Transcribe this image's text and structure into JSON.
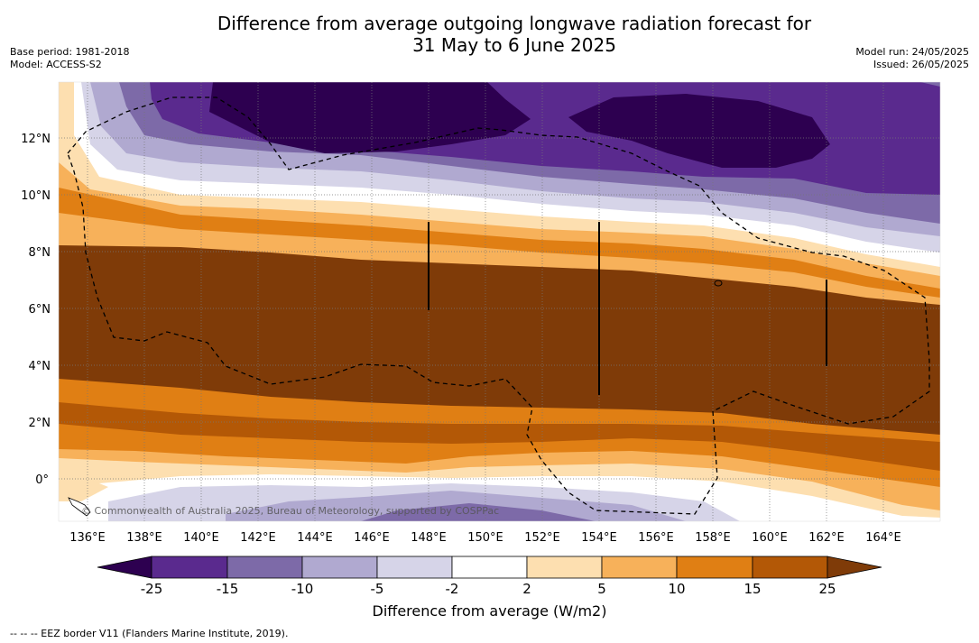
{
  "title_line1": "Difference from average outgoing longwave radiation forecast for",
  "title_line2": "31 May to 6 June 2025",
  "base_period": "Base period: 1981-2018",
  "model": "Model: ACCESS-S2",
  "model_run": "Model run: 24/05/2025",
  "issued": "Issued: 26/05/2025",
  "copyright": "© Commonwealth of Australia 2025, Bureau of Meteorology, supported by COSPPac",
  "lon_labels": [
    "136°E",
    "138°E",
    "140°E",
    "142°E",
    "144°E",
    "146°E",
    "148°E",
    "150°E",
    "152°E",
    "154°E",
    "156°E",
    "158°E",
    "160°E",
    "162°E",
    "164°E"
  ],
  "lat_labels": [
    "12°N",
    "10°N",
    "8°N",
    "6°N",
    "4°N",
    "2°N",
    "0°"
  ],
  "colorbar": {
    "ticks": [
      "-25",
      "-15",
      "-10",
      "-5",
      "-2",
      "2",
      "5",
      "10",
      "15",
      "25"
    ],
    "colors": [
      "#2d0050",
      "#5a2a8e",
      "#7d6aa8",
      "#b0a9d0",
      "#d6d4e8",
      "#ffffff",
      "#fddfb0",
      "#f7b15a",
      "#e07f14",
      "#b35806",
      "#7f3b08"
    ],
    "label": "Difference from average (W/m2)"
  },
  "footnote": "--  --  -- EEZ border V11 (Flanders Marine Institute, 2019).",
  "palette": {
    "deep_purple": "#2d0050",
    "purple": "#5a2a8e",
    "mid_purple": "#7d6aa8",
    "light_purple": "#b0a9d0",
    "pale_purple": "#d6d4e8",
    "white": "#ffffff",
    "pale_orange": "#fddfb0",
    "light_orange": "#f7b15a",
    "orange": "#e07f14",
    "dark_orange": "#b35806",
    "brown": "#7f3b08"
  }
}
